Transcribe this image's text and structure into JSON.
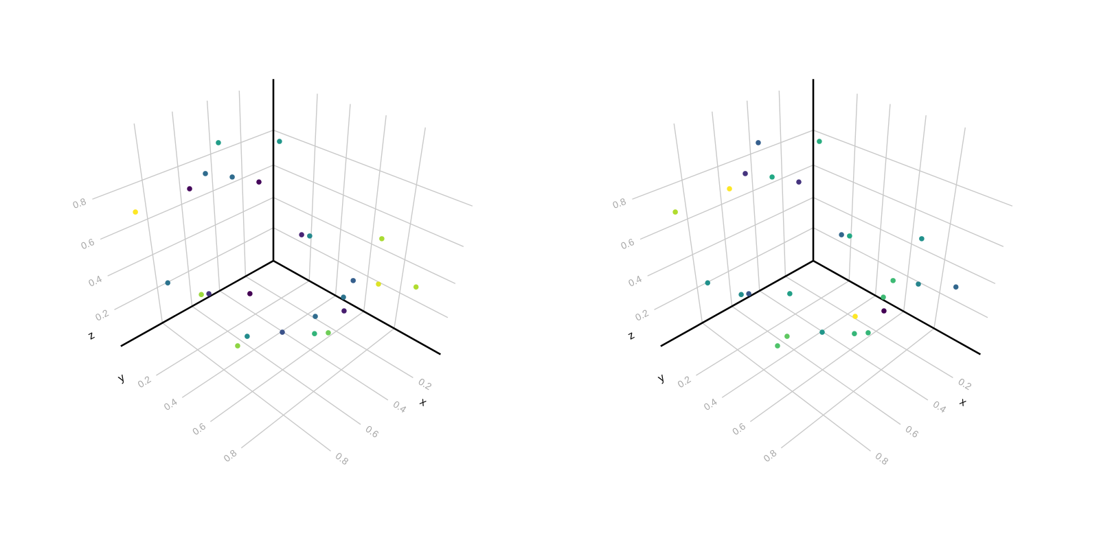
{
  "colormap": {
    "name": "viridis",
    "stops": [
      "#440154",
      "#482475",
      "#414487",
      "#355f8d",
      "#2a788e",
      "#21918c",
      "#22a884",
      "#44bf70",
      "#7ad151",
      "#bddf26",
      "#fde725"
    ]
  },
  "chart_data": [
    {
      "type": "scatter3d",
      "xlabel": "x",
      "ylabel": "y",
      "zlabel": "z",
      "xlim": [
        -0.032,
        1.053
      ],
      "ylim": [
        -0.095,
        1.075
      ],
      "zlim": [
        -0.034,
        1.064
      ],
      "xticks": [
        0.2,
        0.4,
        0.6,
        0.8
      ],
      "xticklabels": [
        "0.2",
        "0.4",
        "0.6",
        "0.8"
      ],
      "yticks": [
        0.2,
        0.4,
        0.6,
        0.8
      ],
      "yticklabels": [
        "0.2",
        "0.4",
        "0.6",
        "0.8"
      ],
      "zticks": [
        0.2,
        0.4,
        0.6,
        0.8
      ],
      "zticklabels": [
        "0.2",
        "0.4",
        "0.6",
        "0.8"
      ],
      "grid": true,
      "x": [
        0.515,
        0.668,
        0.557,
        0.776,
        0.442,
        0.956,
        0.895,
        0.792,
        0.766,
        0.675,
        0.804,
        0.234,
        0.462,
        0.456,
        0.291,
        0.362,
        0.285,
        0.147,
        0.387,
        0.417,
        0.567,
        0.729,
        0.619,
        0.556,
        0.846
      ],
      "y": [
        0.109,
        0.197,
        0.241,
        0.223,
        0.288,
        0.073,
        0.155,
        0.261,
        0.284,
        0.464,
        0.581,
        0.211,
        0.571,
        0.612,
        0.865,
        0.792,
        0.873,
        0.98,
        0.766,
        0.798,
        0.759,
        0.719,
        0.803,
        0.827,
        0.564
      ],
      "z": [
        0.954,
        0.887,
        0.848,
        0.864,
        0.8,
        0.766,
        0.408,
        0.343,
        0.346,
        0.394,
        0.295,
        0.907,
        0.656,
        0.665,
        0.69,
        0.474,
        0.457,
        0.425,
        0.382,
        0.339,
        0.372,
        0.357,
        0.333,
        0.314,
        0.256
      ],
      "color": [
        0.55,
        0.35,
        0.35,
        0.02,
        0.02,
        1.0,
        0.38,
        0.85,
        0.15,
        0.0,
        0.48,
        0.52,
        0.1,
        0.47,
        0.87,
        0.3,
        0.95,
        0.88,
        0.38,
        0.08,
        0.35,
        0.25,
        0.65,
        0.78,
        0.83
      ]
    },
    {
      "type": "scatter3d",
      "xlabel": "x",
      "ylabel": "y",
      "zlabel": "z",
      "xlim": [
        -0.032,
        1.053
      ],
      "ylim": [
        -0.095,
        1.075
      ],
      "zlim": [
        -0.034,
        1.064
      ],
      "xticks": [
        0.2,
        0.4,
        0.6,
        0.8
      ],
      "xticklabels": [
        "0.2",
        "0.4",
        "0.6",
        "0.8"
      ],
      "yticks": [
        0.2,
        0.4,
        0.6,
        0.8
      ],
      "yticklabels": [
        "0.2",
        "0.4",
        "0.6",
        "0.8"
      ],
      "zticks": [
        0.2,
        0.4,
        0.6,
        0.8
      ],
      "zticklabels": [
        "0.2",
        "0.4",
        "0.6",
        "0.8"
      ],
      "grid": true,
      "x": [
        0.515,
        0.668,
        0.557,
        0.776,
        0.442,
        0.956,
        0.895,
        0.792,
        0.766,
        0.675,
        0.804,
        0.234,
        0.462,
        0.456,
        0.291,
        0.362,
        0.285,
        0.147,
        0.387,
        0.417,
        0.567,
        0.729,
        0.619,
        0.556,
        0.846
      ],
      "y": [
        0.109,
        0.197,
        0.241,
        0.223,
        0.288,
        0.073,
        0.155,
        0.261,
        0.284,
        0.464,
        0.581,
        0.211,
        0.571,
        0.612,
        0.865,
        0.792,
        0.873,
        0.98,
        0.766,
        0.798,
        0.759,
        0.719,
        0.803,
        0.827,
        0.564
      ],
      "z": [
        0.954,
        0.887,
        0.848,
        0.864,
        0.8,
        0.766,
        0.408,
        0.343,
        0.346,
        0.394,
        0.295,
        0.907,
        0.656,
        0.665,
        0.69,
        0.474,
        0.457,
        0.425,
        0.382,
        0.339,
        0.372,
        0.357,
        0.333,
        0.314,
        0.256
      ],
      "color": [
        0.3,
        0.15,
        0.6,
        1.0,
        0.15,
        0.88,
        0.5,
        0.48,
        0.27,
        0.56,
        0.75,
        0.62,
        0.33,
        0.6,
        0.5,
        0.68,
        0.45,
        0.33,
        0.68,
        0.0,
        1.0,
        0.52,
        0.66,
        0.66,
        0.72
      ]
    }
  ]
}
